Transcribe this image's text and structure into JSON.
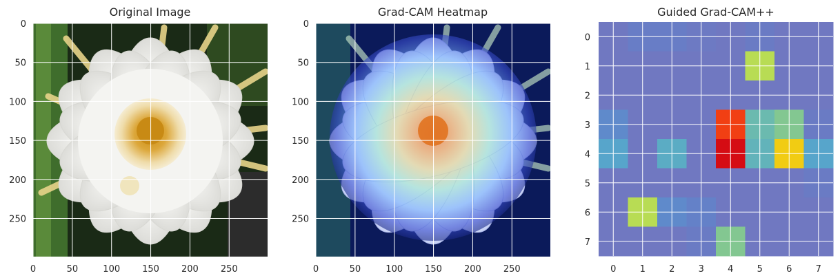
{
  "chart_data": [
    {
      "type": "image",
      "title": "Original Image",
      "description": "white cactus flower (Epiphyllum) on dark green background",
      "xticks": [
        "0",
        "50",
        "100",
        "150",
        "200",
        "250"
      ],
      "yticks": [
        "0",
        "50",
        "100",
        "150",
        "200",
        "250"
      ],
      "xlim": [
        0,
        299
      ],
      "ylim": [
        299,
        0
      ],
      "grid": true
    },
    {
      "type": "image",
      "title": "Grad-CAM Heatmap",
      "description": "flower overlaid with jet colormap heatmap, hottest at flower center",
      "xticks": [
        "0",
        "50",
        "100",
        "150",
        "200",
        "250"
      ],
      "yticks": [
        "0",
        "50",
        "100",
        "150",
        "200",
        "250"
      ],
      "xlim": [
        0,
        299
      ],
      "ylim": [
        299,
        0
      ],
      "grid": true
    },
    {
      "type": "heatmap",
      "title": "Guided Grad-CAM++",
      "xticks": [
        "0",
        "1",
        "2",
        "3",
        "4",
        "5",
        "6",
        "7"
      ],
      "yticks": [
        "0",
        "1",
        "2",
        "3",
        "4",
        "5",
        "6",
        "7"
      ],
      "grid": true,
      "values": [
        [
          0.05,
          0.12,
          0.12,
          0.08,
          0.05,
          0.1,
          0.05,
          0.05
        ],
        [
          0.05,
          0.05,
          0.05,
          0.05,
          0.05,
          0.75,
          0.05,
          0.05
        ],
        [
          0.05,
          0.05,
          0.05,
          0.05,
          0.05,
          0.05,
          0.05,
          0.05
        ],
        [
          0.2,
          0.05,
          0.05,
          0.05,
          1.3,
          0.5,
          0.6,
          0.1
        ],
        [
          0.35,
          0.05,
          0.4,
          0.05,
          1.5,
          0.45,
          0.95,
          0.35
        ],
        [
          0.05,
          0.05,
          0.05,
          0.05,
          0.05,
          0.05,
          0.05,
          0.1
        ],
        [
          0.05,
          0.75,
          0.2,
          0.15,
          0.05,
          0.05,
          0.05,
          0.05
        ],
        [
          0.05,
          0.05,
          0.05,
          0.1,
          0.6,
          0.05,
          0.05,
          0.05
        ]
      ]
    }
  ]
}
